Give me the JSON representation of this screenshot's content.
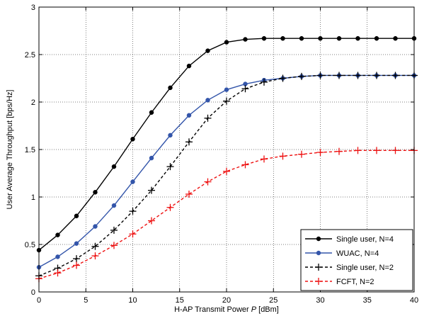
{
  "chart_data": {
    "type": "line",
    "title": "",
    "xlabel_prefix": "H-AP Transmit Power ",
    "xlabel_var": "P",
    "xlabel_suffix": " [dBm]",
    "ylabel": "User Average Throughput [bps/Hz]",
    "xlim": [
      0,
      40
    ],
    "ylim": [
      0,
      3
    ],
    "xticks": [
      0,
      5,
      10,
      15,
      20,
      25,
      30,
      35,
      40
    ],
    "yticks": [
      0,
      0.5,
      1,
      1.5,
      2,
      2.5,
      3
    ],
    "xtick_labels": [
      "0",
      "5",
      "10",
      "15",
      "20",
      "25",
      "30",
      "35",
      "40"
    ],
    "ytick_labels": [
      "0",
      "0.5",
      "1",
      "1.5",
      "2",
      "2.5",
      "3"
    ],
    "grid": true,
    "legend_position": "bottom-right",
    "x": [
      0,
      2,
      4,
      6,
      8,
      10,
      12,
      14,
      16,
      18,
      20,
      22,
      24,
      26,
      28,
      30,
      32,
      34,
      36,
      38,
      40
    ],
    "series": [
      {
        "name": "Single user, N=4",
        "color": "#000000",
        "line_style": "solid",
        "marker": "dot",
        "values": [
          0.44,
          0.6,
          0.8,
          1.05,
          1.32,
          1.61,
          1.89,
          2.15,
          2.38,
          2.54,
          2.63,
          2.66,
          2.67,
          2.67,
          2.67,
          2.67,
          2.67,
          2.67,
          2.67,
          2.67,
          2.67
        ]
      },
      {
        "name": "WUAC, N=4",
        "color": "#3355aa",
        "line_style": "solid",
        "marker": "dot",
        "values": [
          0.26,
          0.37,
          0.51,
          0.69,
          0.91,
          1.16,
          1.41,
          1.65,
          1.86,
          2.02,
          2.13,
          2.19,
          2.23,
          2.25,
          2.27,
          2.28,
          2.28,
          2.28,
          2.28,
          2.28,
          2.28
        ]
      },
      {
        "name": "Single user, N=2",
        "color": "#000000",
        "line_style": "dashed",
        "marker": "plus",
        "values": [
          0.17,
          0.25,
          0.35,
          0.48,
          0.65,
          0.85,
          1.07,
          1.32,
          1.58,
          1.83,
          2.01,
          2.14,
          2.21,
          2.25,
          2.27,
          2.28,
          2.28,
          2.28,
          2.28,
          2.28,
          2.28
        ]
      },
      {
        "name": "FCFT, N=2",
        "color": "#ee1111",
        "line_style": "dashed",
        "marker": "plus",
        "values": [
          0.14,
          0.2,
          0.28,
          0.38,
          0.49,
          0.61,
          0.75,
          0.89,
          1.03,
          1.16,
          1.27,
          1.34,
          1.4,
          1.43,
          1.45,
          1.47,
          1.48,
          1.49,
          1.49,
          1.49,
          1.49
        ]
      }
    ]
  }
}
